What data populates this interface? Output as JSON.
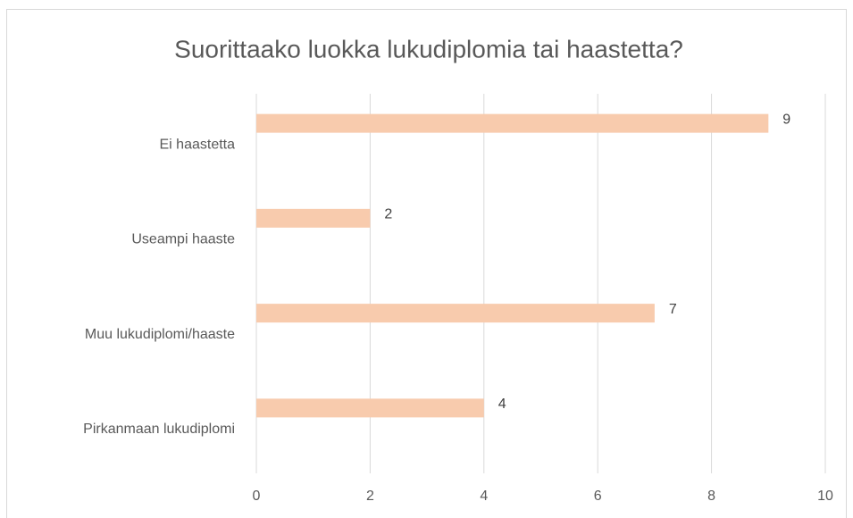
{
  "chart_data": {
    "type": "bar",
    "orientation": "horizontal",
    "title": "Suorittaako luokka lukudiplomia tai haastetta?",
    "categories": [
      "Ei haastetta",
      "Useampi haaste",
      "Muu lukudiplomi/haaste",
      "Pirkanmaan lukudiplomi"
    ],
    "values": [
      9,
      2,
      7,
      4
    ],
    "color": "#f8cbad",
    "xlim": [
      0,
      10
    ],
    "xticks": [
      0,
      2,
      4,
      6,
      8,
      10
    ],
    "grid": true
  }
}
